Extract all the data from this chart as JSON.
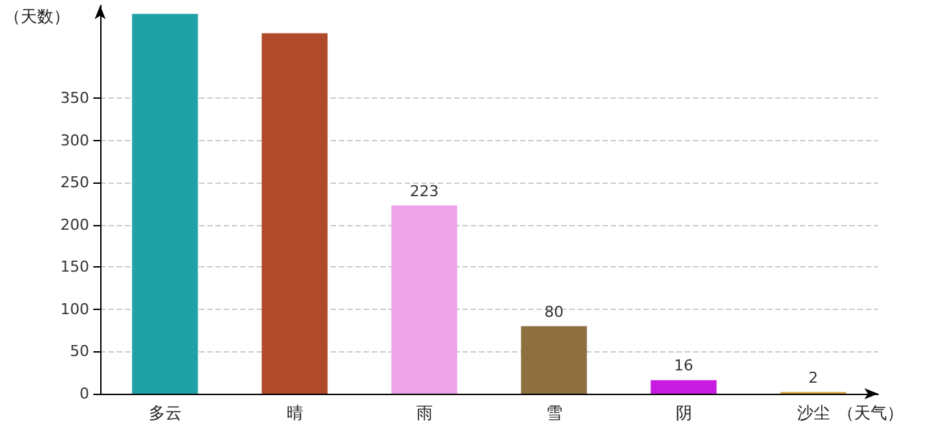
{
  "chart_data": {
    "type": "bar",
    "xlabel": "（天气）",
    "ylabel": "（天数）",
    "categories": [
      "多云",
      "晴",
      "雨",
      "雪",
      "阴",
      "沙尘"
    ],
    "values": [
      450,
      427,
      223,
      80,
      16,
      2
    ],
    "colors": [
      "#1fa1a6",
      "#b04a2a",
      "#eea3e8",
      "#8d6f40",
      "#c71ce0",
      "#d4a040"
    ],
    "value_labels": [
      null,
      null,
      "223",
      "80",
      "16",
      "2"
    ],
    "ylim": [
      0,
      460
    ],
    "yticks": [
      0,
      50,
      100,
      150,
      200,
      250,
      300,
      350
    ],
    "grid": "y"
  }
}
